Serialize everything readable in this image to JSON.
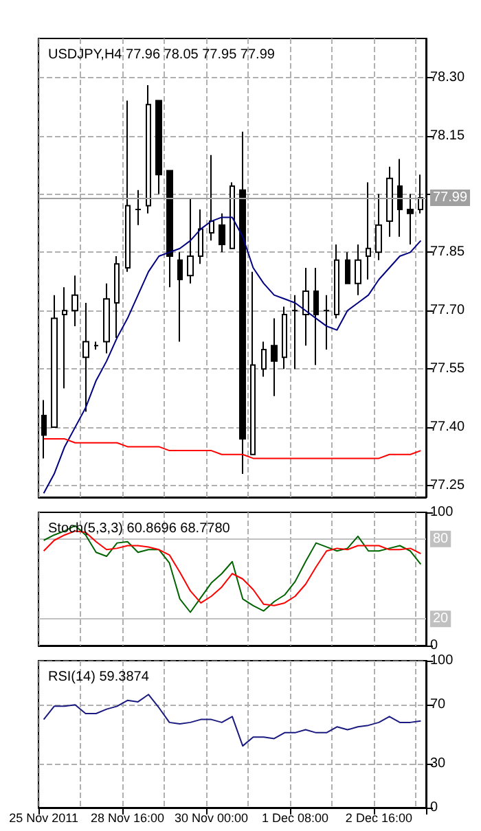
{
  "chart_data": [
    {
      "type": "candlestick",
      "title": "USDJPY,H4 77.96 78.05 77.95 77.99",
      "ohlc": [
        [
          77.43,
          77.47,
          77.32,
          77.38
        ],
        [
          77.4,
          77.74,
          77.4,
          77.68
        ],
        [
          77.69,
          77.76,
          77.5,
          77.7
        ],
        [
          77.7,
          77.79,
          77.66,
          77.74
        ],
        [
          77.58,
          77.72,
          77.44,
          77.62
        ],
        [
          77.61,
          77.62,
          77.6,
          77.61
        ],
        [
          77.62,
          77.77,
          77.59,
          77.73
        ],
        [
          77.72,
          77.84,
          77.63,
          77.82
        ],
        [
          77.81,
          78.24,
          77.8,
          77.97
        ],
        [
          77.96,
          78.01,
          77.92,
          77.96
        ],
        [
          77.97,
          78.28,
          77.95,
          78.23
        ],
        [
          78.24,
          78.24,
          78.0,
          78.05
        ],
        [
          78.06,
          78.06,
          77.76,
          77.84
        ],
        [
          77.83,
          77.85,
          77.62,
          77.78
        ],
        [
          77.79,
          77.99,
          77.77,
          77.84
        ],
        [
          77.84,
          77.96,
          77.82,
          77.91
        ],
        [
          77.9,
          78.1,
          77.88,
          77.93
        ],
        [
          77.92,
          77.95,
          77.85,
          77.87
        ],
        [
          77.86,
          78.03,
          77.86,
          78.02
        ],
        [
          78.01,
          78.16,
          77.28,
          77.37
        ],
        [
          77.33,
          77.8,
          77.33,
          77.56
        ],
        [
          77.55,
          77.62,
          77.53,
          77.6
        ],
        [
          77.61,
          77.68,
          77.48,
          77.57
        ],
        [
          77.58,
          77.71,
          77.55,
          77.69
        ],
        [
          77.7,
          77.74,
          77.55,
          77.7
        ],
        [
          77.69,
          77.81,
          77.61,
          77.75
        ],
        [
          77.75,
          77.81,
          77.56,
          77.69
        ],
        [
          77.7,
          77.74,
          77.6,
          77.7
        ],
        [
          77.69,
          77.87,
          77.68,
          77.83
        ],
        [
          77.83,
          77.85,
          77.77,
          77.77
        ],
        [
          77.77,
          77.87,
          77.74,
          77.83
        ],
        [
          77.84,
          78.03,
          77.78,
          77.86
        ],
        [
          77.85,
          78.0,
          77.83,
          77.92
        ],
        [
          77.93,
          78.07,
          77.89,
          78.04
        ],
        [
          78.02,
          78.09,
          77.89,
          77.96
        ],
        [
          77.96,
          78.0,
          77.87,
          77.95
        ],
        [
          77.96,
          78.05,
          77.95,
          77.99
        ]
      ],
      "series": [
        {
          "type": "line",
          "color": "#000080",
          "values": [
            77.23,
            77.28,
            77.35,
            77.4,
            77.45,
            77.52,
            77.57,
            77.63,
            77.68,
            77.74,
            77.8,
            77.84,
            77.85,
            77.86,
            77.88,
            77.91,
            77.93,
            77.94,
            77.94,
            77.89,
            77.81,
            77.77,
            77.74,
            77.73,
            77.72,
            77.7,
            77.68,
            77.66,
            77.65,
            77.7,
            77.72,
            77.74,
            77.78,
            77.81,
            77.84,
            77.85,
            77.88
          ]
        },
        {
          "type": "line",
          "color": "#ff0000",
          "values": [
            77.37,
            77.37,
            77.37,
            77.36,
            77.36,
            77.36,
            77.36,
            77.36,
            77.35,
            77.35,
            77.35,
            77.35,
            77.34,
            77.34,
            77.34,
            77.34,
            77.34,
            77.33,
            77.33,
            77.33,
            77.32,
            77.32,
            77.32,
            77.32,
            77.32,
            77.32,
            77.32,
            77.32,
            77.32,
            77.32,
            77.32,
            77.32,
            77.32,
            77.33,
            77.33,
            77.33,
            77.34
          ]
        }
      ],
      "ylim": [
        77.22,
        78.4
      ],
      "yticks": [
        77.25,
        {
          "value": 77.4,
          "label": "77.40"
        },
        77.55,
        {
          "value": 77.7,
          "label": "77.70"
        },
        77.85,
        {
          "value": 78,
          "label": null
        },
        78.15,
        {
          "value": 78.3,
          "label": "78.30"
        }
      ],
      "ref_lines": [
        {
          "axis": "y",
          "value": 77.99,
          "label": "77.99",
          "color": "#a0a0a0"
        }
      ],
      "grid": true,
      "marker": "none",
      "tick_labels": "y"
    },
    {
      "type": "line",
      "title": "Stoch(5,3,3) 60.8696 68.7780",
      "series": [
        {
          "color": "#006400",
          "values": [
            79,
            83,
            86,
            90,
            83,
            70,
            67,
            77,
            78,
            70,
            72,
            72,
            62,
            35,
            25,
            36,
            47,
            54,
            63,
            35,
            30,
            26,
            33,
            38,
            48,
            63,
            77,
            74,
            71,
            73,
            82,
            71,
            71,
            73,
            75,
            71,
            61
          ]
        },
        {
          "color": "#ff0000",
          "values": [
            71,
            79,
            83,
            86,
            85,
            78,
            72,
            73,
            75,
            75,
            74,
            72,
            68,
            55,
            41,
            32,
            37,
            44,
            54,
            50,
            42,
            31,
            30,
            32,
            37,
            46,
            59,
            71,
            73,
            72,
            75,
            75,
            75,
            72,
            72,
            73,
            69
          ]
        }
      ],
      "ylim": [
        0,
        100
      ],
      "yticks": [
        0,
        100
      ],
      "ref_lines": [
        {
          "axis": "y",
          "value": 80,
          "label": "80",
          "color": "#c0c0c0"
        },
        {
          "axis": "y",
          "value": 20,
          "label": "20",
          "color": "#c0c0c0"
        }
      ],
      "grid": "x",
      "marker": "none",
      "tick_labels": "y"
    },
    {
      "type": "line",
      "title": "RSI(14) 59.3874",
      "categories": [
        "25 Nov 2011",
        null,
        null,
        null,
        null,
        null,
        null,
        null,
        "28 Nov 16:00",
        null,
        null,
        null,
        null,
        null,
        null,
        null,
        "30 Nov 00:00",
        null,
        null,
        null,
        null,
        null,
        null,
        null,
        "1 Dec 08:00",
        null,
        null,
        null,
        null,
        null,
        null,
        null,
        "2 Dec 16:00",
        null,
        null,
        null,
        null
      ],
      "series": [
        {
          "color": "#1a1a80",
          "values": [
            60,
            69,
            69,
            70,
            64,
            64,
            67,
            69,
            73,
            72,
            77,
            68,
            58,
            57,
            58,
            60,
            60,
            58,
            62,
            42,
            48,
            48,
            47,
            51,
            51,
            53,
            51,
            51,
            55,
            53,
            55,
            56,
            58,
            62,
            58,
            58,
            59
          ]
        }
      ],
      "ylim": [
        0,
        100
      ],
      "yticks": [
        0,
        30,
        70,
        100
      ],
      "grid": true,
      "marker": "none"
    }
  ]
}
